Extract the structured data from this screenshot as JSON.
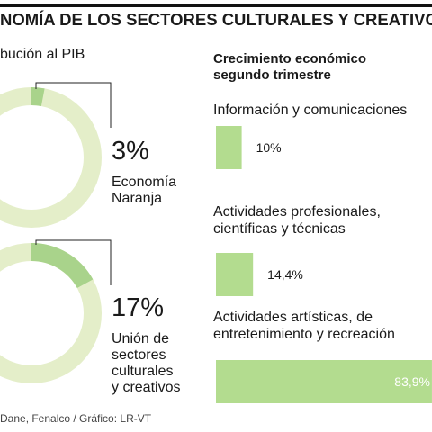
{
  "title": "NOMÍA DE LOS SECTORES CULTURALES Y CREATIVOS",
  "subtitle": "bución al PIB",
  "source": "Dane, Fenalco / Gráfico: LR-VT",
  "chart_data": [
    {
      "type": "pie",
      "values": [
        3
      ],
      "value_labels": [
        "3%"
      ],
      "label": [
        "Economía",
        "Naranja"
      ],
      "color": "#a9d38b",
      "track_color": "#e4eec9"
    },
    {
      "type": "pie",
      "values": [
        17
      ],
      "value_labels": [
        "17%"
      ],
      "label": [
        "Unión de",
        "sectores",
        "culturales",
        "y creativos"
      ],
      "color": "#a9d38b",
      "track_color": "#e4eec9"
    },
    {
      "type": "bar",
      "title": "Crecimiento económico segundo trimestre",
      "categories": [
        "Información y comunicaciones",
        "Actividades profesionales, científicas y técnicas",
        "Actividades artísticas, de entretenimiento y recreación"
      ],
      "values": [
        10,
        14.4,
        83.9
      ],
      "value_labels": [
        "10%",
        "14,4%",
        "83,9%"
      ],
      "color": "#b3dc8f",
      "xlim": [
        0,
        100
      ]
    }
  ]
}
